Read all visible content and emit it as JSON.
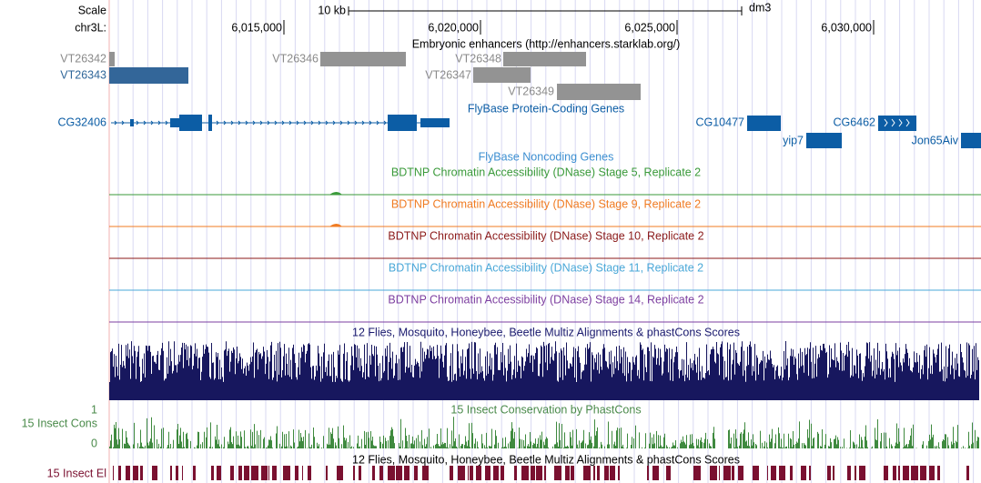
{
  "ruler": {
    "scale": "Scale",
    "bar_label": "10 kb",
    "assembly": "dm3",
    "chrom": "chr3L:",
    "ticks": [
      "6,015,000",
      "6,020,000",
      "6,025,000",
      "6,030,000"
    ]
  },
  "enhancers": {
    "title": "Embryonic enhancers (http://enhancers.starklab.org/)",
    "items": [
      "VT26342",
      "VT26343",
      "VT26346",
      "VT26348",
      "VT26347",
      "VT26349"
    ]
  },
  "genes": {
    "title": "FlyBase Protein-Coding Genes",
    "items": [
      "CG32406",
      "CG10477",
      "CG6462",
      "yip7",
      "Jon65Aiv"
    ]
  },
  "noncoding": {
    "title": "FlyBase Noncoding Genes"
  },
  "dnase": [
    "BDTNP Chromatin Accessibility (DNase) Stage 5, Replicate 2",
    "BDTNP Chromatin Accessibility (DNase) Stage 9, Replicate 2",
    "BDTNP Chromatin Accessibility (DNase) Stage 10, Replicate 2",
    "BDTNP Chromatin Accessibility (DNase) Stage 11, Replicate 2",
    "BDTNP Chromatin Accessibility (DNase) Stage 14, Replicate 2"
  ],
  "multiz": {
    "title": "12 Flies, Mosquito, Honeybee, Beetle Multiz Alignments & phastCons Scores"
  },
  "cons": {
    "title": "15 Insect Conservation by PhastCons",
    "label": "15 Insect Cons",
    "axis_max": "1",
    "axis_min": "0"
  },
  "elements": {
    "title": "12 Flies, Mosquito, Honeybee, Beetle Multiz Alignments & phastCons Scores",
    "label": "15 Insect El"
  }
}
